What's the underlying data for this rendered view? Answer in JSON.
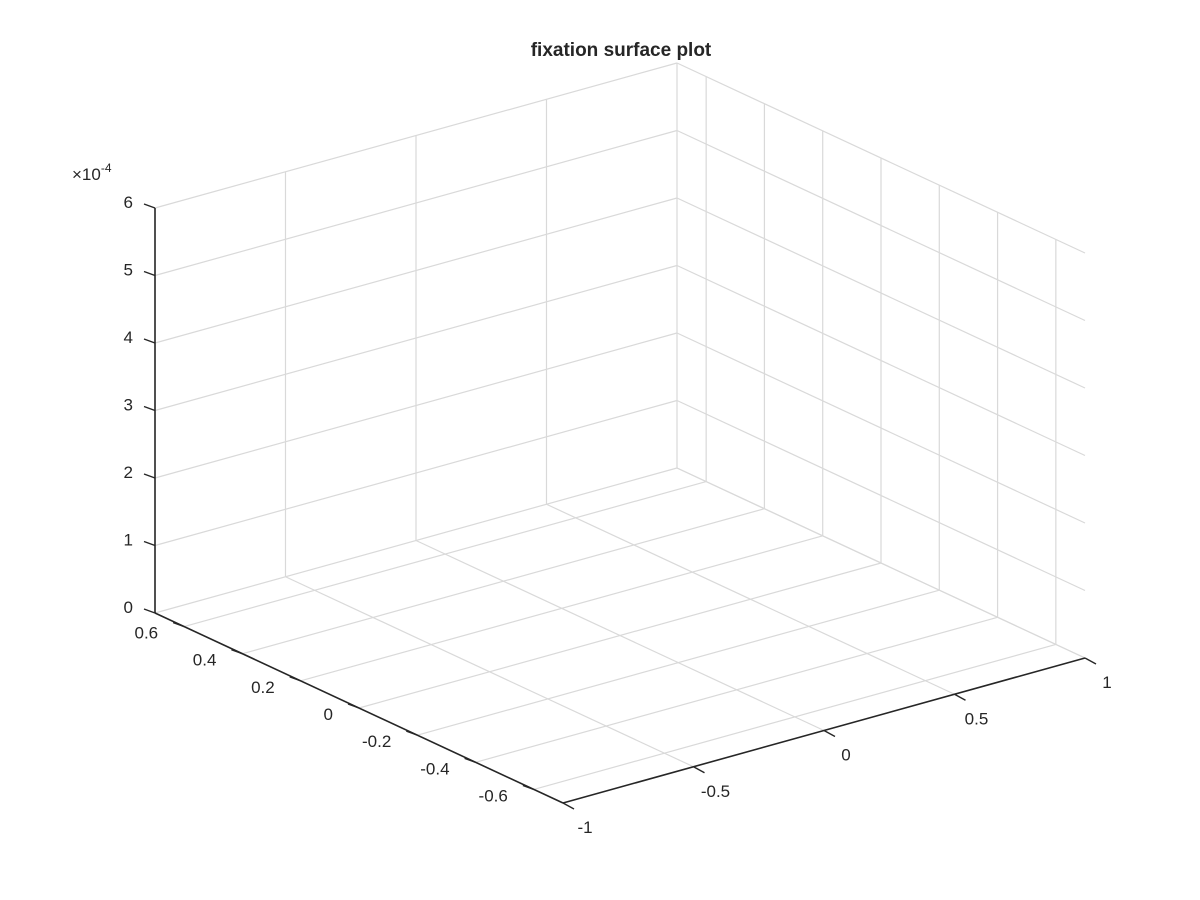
{
  "chart_data": {
    "type": "surface",
    "title": "fixation surface plot",
    "xlabel": "",
    "ylabel": "",
    "zlabel": "",
    "x_ticks": [
      "-1",
      "-0.5",
      "0",
      "0.5",
      "1"
    ],
    "x_tick_values": [
      -1,
      -0.5,
      0,
      0.5,
      1
    ],
    "xlim": [
      -1,
      1
    ],
    "y_ticks": [
      "-0.6",
      "-0.4",
      "-0.2",
      "0",
      "0.2",
      "0.4",
      "0.6"
    ],
    "y_tick_values": [
      -0.6,
      -0.4,
      -0.2,
      0,
      0.2,
      0.4,
      0.6
    ],
    "ylim": [
      -0.7,
      0.7
    ],
    "z_ticks": [
      "0",
      "1",
      "2",
      "3",
      "4",
      "5",
      "6"
    ],
    "z_tick_values": [
      0,
      1,
      2,
      3,
      4,
      5,
      6
    ],
    "zlim": [
      0,
      6
    ],
    "z_exponent_prefix": "×10",
    "z_exponent": "-4",
    "grid": true,
    "surface_visible": false,
    "colors": {
      "axis": "#262626",
      "grid": "#d9d9d9",
      "background": "#ffffff"
    }
  }
}
